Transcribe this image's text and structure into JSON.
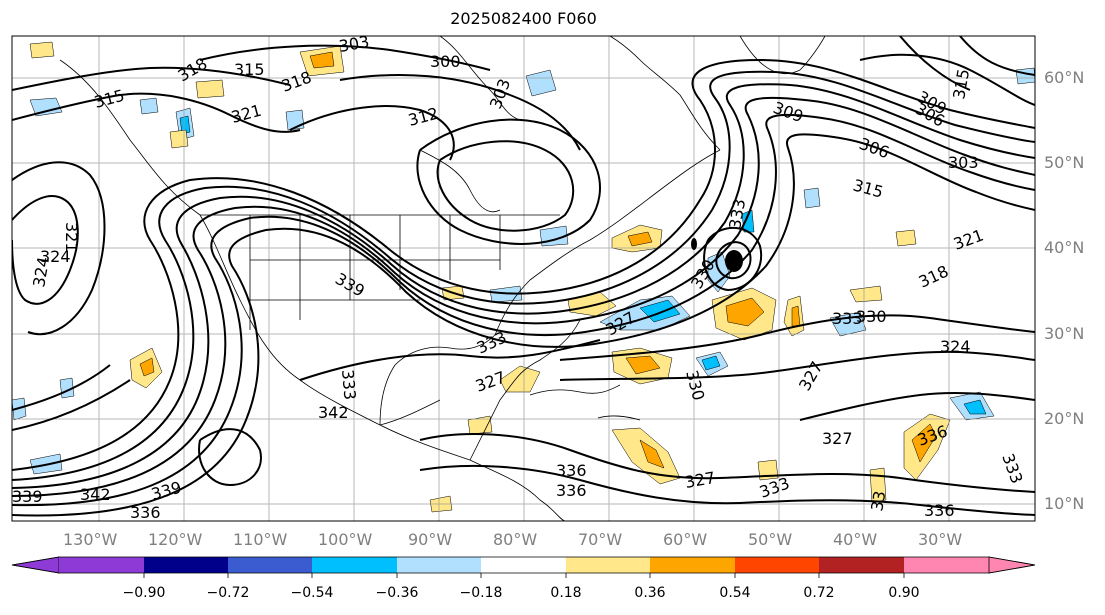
{
  "title": "2025082400 F060",
  "longitude_labels": [
    "130°W",
    "120°W",
    "110°W",
    "100°W",
    "90°W",
    "80°W",
    "70°W",
    "60°W",
    "50°W",
    "40°W",
    "30°W"
  ],
  "latitude_labels": [
    "60°N",
    "50°N",
    "40°N",
    "30°N",
    "20°N",
    "10°N"
  ],
  "colorbar": {
    "ticks": [
      "−0.90",
      "−0.72",
      "−0.54",
      "−0.36",
      "−0.18",
      "0.18",
      "0.36",
      "0.54",
      "0.72",
      "0.90"
    ],
    "colors": [
      "#8e3ad6",
      "#00008b",
      "#3a5cd0",
      "#00bfff",
      "#b0e0fe",
      "#ffffff",
      "#ffe78a",
      "#ffa500",
      "#ff4500",
      "#b22222",
      "#ff86b0"
    ]
  },
  "contour_labels": [
    {
      "text": "303"
    },
    {
      "text": "300"
    },
    {
      "text": "315"
    },
    {
      "text": "318"
    },
    {
      "text": "318"
    },
    {
      "text": "315"
    },
    {
      "text": "321"
    },
    {
      "text": "312"
    },
    {
      "text": "303"
    },
    {
      "text": "309"
    },
    {
      "text": "306"
    },
    {
      "text": "303"
    },
    {
      "text": "306"
    },
    {
      "text": "309"
    },
    {
      "text": "315"
    },
    {
      "text": "315"
    },
    {
      "text": "321"
    },
    {
      "text": "324"
    },
    {
      "text": "324"
    },
    {
      "text": "321"
    },
    {
      "text": "318"
    },
    {
      "text": "327"
    },
    {
      "text": "330"
    },
    {
      "text": "333"
    },
    {
      "text": "324"
    },
    {
      "text": "327"
    },
    {
      "text": "330"
    },
    {
      "text": "330"
    },
    {
      "text": "327"
    },
    {
      "text": "336"
    },
    {
      "text": "333"
    },
    {
      "text": "339"
    },
    {
      "text": "342"
    },
    {
      "text": "339"
    },
    {
      "text": "336"
    },
    {
      "text": "336"
    },
    {
      "text": "336"
    },
    {
      "text": "327"
    },
    {
      "text": "333"
    },
    {
      "text": "33"
    },
    {
      "text": "336"
    },
    {
      "text": "342"
    },
    {
      "text": "333"
    },
    {
      "text": "339"
    },
    {
      "text": "333"
    },
    {
      "text": "333"
    },
    {
      "text": "327"
    }
  ]
}
